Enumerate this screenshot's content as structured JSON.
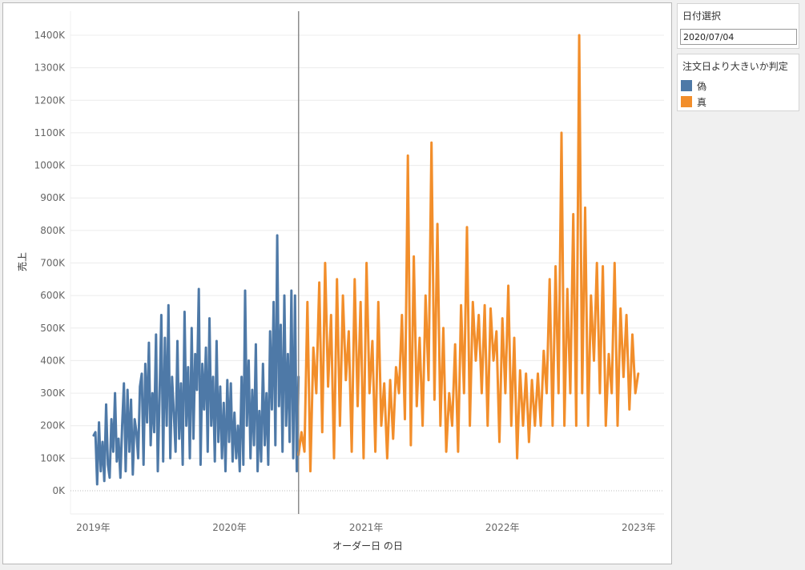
{
  "filter": {
    "title": "日付選択",
    "value": "2020/07/04"
  },
  "legend": {
    "title": "注文日より大きいか判定",
    "items": [
      {
        "label": "偽",
        "color": "#4e79a7"
      },
      {
        "label": "真",
        "color": "#f28e2b"
      }
    ]
  },
  "chart_data": {
    "type": "line",
    "xlabel": "オーダー日 の日",
    "ylabel": "売上",
    "x_tick_labels": [
      "2019年",
      "2020年",
      "2021年",
      "2022年",
      "2023年"
    ],
    "y_tick_labels": [
      "0K",
      "100K",
      "200K",
      "300K",
      "400K",
      "500K",
      "600K",
      "700K",
      "800K",
      "900K",
      "1000K",
      "1100K",
      "1200K",
      "1300K",
      "1400K"
    ],
    "ylim": [
      0,
      1400000
    ],
    "xlim": [
      "2018-11-01",
      "2023-03-10"
    ],
    "reference_line_date": "2020-07-04",
    "grid": true,
    "series": [
      {
        "name": "偽",
        "color": "#4e79a7",
        "x_range": [
          "2019-01-02",
          "2020-07-04"
        ],
        "values": [
          170000,
          180000,
          20000,
          210000,
          60000,
          150000,
          30000,
          265000,
          80000,
          40000,
          220000,
          120000,
          300000,
          90000,
          160000,
          40000,
          200000,
          330000,
          60000,
          310000,
          120000,
          280000,
          50000,
          220000,
          180000,
          100000,
          320000,
          360000,
          80000,
          390000,
          210000,
          455000,
          140000,
          300000,
          180000,
          480000,
          60000,
          290000,
          540000,
          90000,
          470000,
          200000,
          570000,
          100000,
          350000,
          240000,
          120000,
          460000,
          160000,
          330000,
          80000,
          550000,
          200000,
          380000,
          100000,
          500000,
          160000,
          420000,
          310000,
          620000,
          80000,
          390000,
          250000,
          440000,
          120000,
          530000,
          200000,
          350000,
          90000,
          460000,
          150000,
          320000,
          100000,
          270000,
          60000,
          340000,
          150000,
          330000,
          90000,
          240000,
          100000,
          200000,
          60000,
          350000,
          80000,
          615000,
          200000,
          400000,
          100000,
          310000,
          140000,
          450000,
          60000,
          245000,
          90000,
          390000,
          140000,
          300000,
          80000,
          490000,
          250000,
          580000,
          140000,
          785000,
          260000,
          510000,
          120000,
          600000,
          200000,
          420000,
          150000,
          615000,
          100000,
          600000,
          60000,
          350000
        ]
      },
      {
        "name": "真",
        "color": "#f28e2b",
        "x_range": [
          "2020-07-04",
          "2022-12-31"
        ],
        "values": [
          110000,
          180000,
          120000,
          580000,
          60000,
          440000,
          300000,
          640000,
          180000,
          700000,
          320000,
          540000,
          100000,
          650000,
          200000,
          600000,
          340000,
          490000,
          120000,
          650000,
          260000,
          580000,
          100000,
          700000,
          300000,
          460000,
          120000,
          580000,
          200000,
          330000,
          100000,
          340000,
          160000,
          380000,
          300000,
          540000,
          220000,
          1030000,
          140000,
          720000,
          260000,
          470000,
          200000,
          600000,
          340000,
          1070000,
          280000,
          820000,
          200000,
          500000,
          120000,
          300000,
          200000,
          450000,
          120000,
          570000,
          300000,
          810000,
          200000,
          580000,
          400000,
          540000,
          300000,
          570000,
          200000,
          560000,
          400000,
          490000,
          150000,
          530000,
          300000,
          630000,
          200000,
          470000,
          100000,
          370000,
          200000,
          360000,
          150000,
          340000,
          200000,
          360000,
          200000,
          430000,
          300000,
          650000,
          200000,
          690000,
          300000,
          1100000,
          200000,
          620000,
          300000,
          850000,
          200000,
          1400000,
          300000,
          870000,
          200000,
          600000,
          400000,
          700000,
          300000,
          690000,
          200000,
          420000,
          300000,
          700000,
          200000,
          560000,
          350000,
          540000,
          250000,
          480000,
          300000,
          360000
        ]
      }
    ]
  }
}
